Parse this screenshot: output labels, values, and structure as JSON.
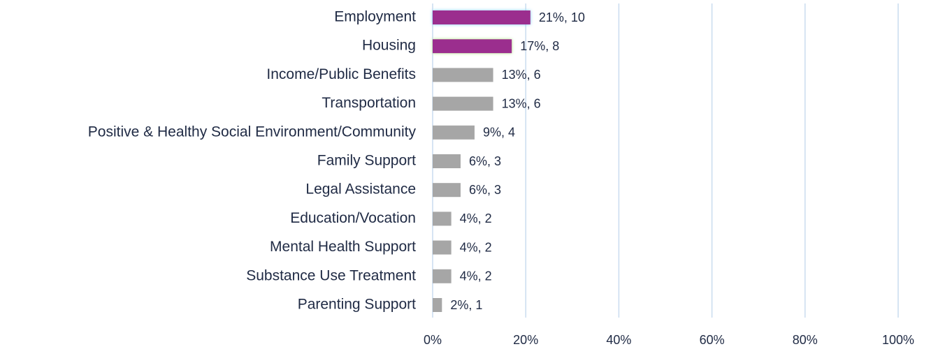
{
  "chart_data": {
    "type": "bar",
    "orientation": "horizontal",
    "categories": [
      "Employment",
      "Housing",
      "Income/Public Benefits",
      "Transportation",
      "Positive & Healthy Social Environment/Community",
      "Family Support",
      "Legal Assistance",
      "Education/Vocation",
      "Mental Health Support",
      "Substance Use Treatment",
      "Parenting Support"
    ],
    "values": [
      21,
      17,
      13,
      13,
      9,
      6,
      6,
      4,
      4,
      4,
      2
    ],
    "value_labels": [
      "21%, 10",
      "17%, 8",
      "13%, 6",
      "13%, 6",
      "9%, 4",
      "6%, 3",
      "6%, 3",
      "4%, 2",
      "4%, 2",
      "4%, 2",
      "2%, 1"
    ],
    "colors": [
      "#9b2d8e",
      "#9b2d8e",
      "#a6a6a6",
      "#a6a6a6",
      "#a6a6a6",
      "#a6a6a6",
      "#a6a6a6",
      "#a6a6a6",
      "#a6a6a6",
      "#a6a6a6",
      "#a6a6a6"
    ],
    "xlim": [
      0,
      100
    ],
    "xticks": [
      {
        "value": 0,
        "label": "0%"
      },
      {
        "value": 20,
        "label": "20%"
      },
      {
        "value": 40,
        "label": "40%"
      },
      {
        "value": 60,
        "label": "60%"
      },
      {
        "value": 80,
        "label": "80%"
      },
      {
        "value": 100,
        "label": "100%"
      }
    ],
    "grid": true
  }
}
